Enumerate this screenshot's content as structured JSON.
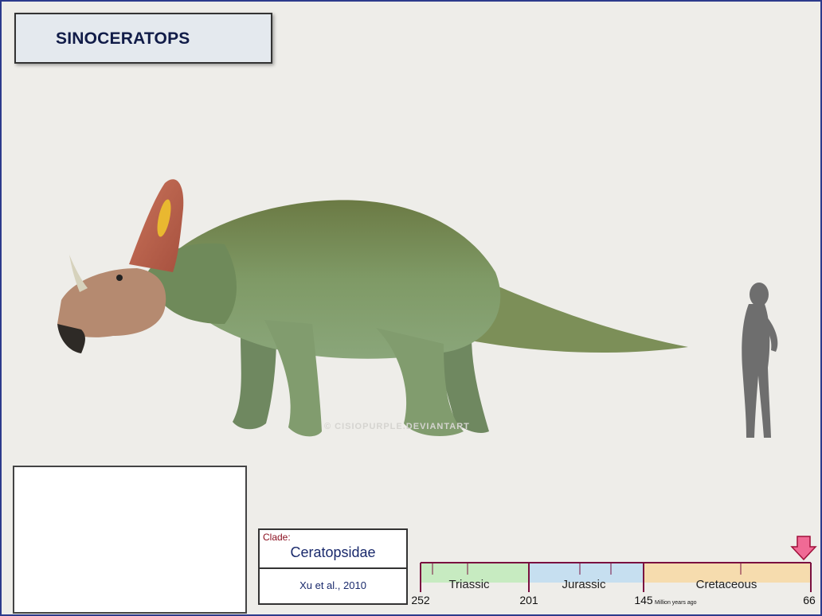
{
  "title": "SINOCERATOPS",
  "watermark": "© CISIOPURPLE.DEVIANTART",
  "clade": {
    "label": "Clade:",
    "name": "Ceratopsidae",
    "author": "Xu et al., 2010"
  },
  "timeline": {
    "periods": [
      {
        "name": "Triassic",
        "color": "#c7ebc1"
      },
      {
        "name": "Jurassic",
        "color": "#c6dff0"
      },
      {
        "name": "Cretaceous",
        "color": "#f6dcae"
      }
    ],
    "ticks": [
      "252",
      "201",
      "145",
      "66"
    ],
    "unit_label": "Million years ago",
    "line_color": "#7a1040",
    "arrow_color": "#f06a95"
  },
  "map": {
    "land_color": "#5e5e5e",
    "locality_color": "#d01818"
  },
  "colors": {
    "frame": "#2c3a8c",
    "title_text": "#111c48",
    "silhouette": "#6e6e6e"
  }
}
